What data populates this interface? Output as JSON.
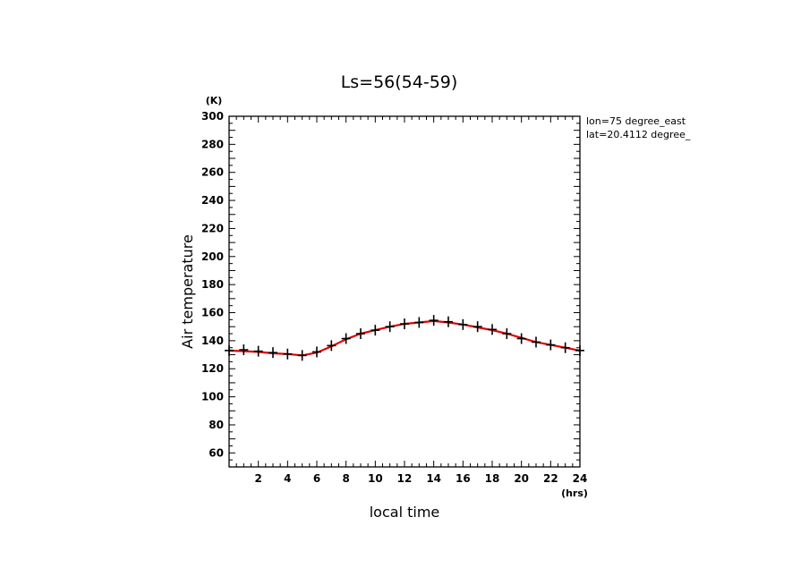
{
  "chart_data": {
    "type": "line",
    "title": "Ls=56(54-59)",
    "xlabel": "local time",
    "ylabel": "Air temperature",
    "x_unit": "(hrs)",
    "y_unit": "(K)",
    "xlim": [
      0,
      24
    ],
    "ylim": [
      50,
      300
    ],
    "x_ticks": [
      2,
      4,
      6,
      8,
      10,
      12,
      14,
      16,
      18,
      20,
      22,
      24
    ],
    "y_ticks": [
      60,
      80,
      100,
      120,
      140,
      160,
      180,
      200,
      220,
      240,
      260,
      280,
      300
    ],
    "annotations": [
      "lon=75 degree_east",
      "lat=20.4112 degree_"
    ],
    "grid": false,
    "series": [
      {
        "style": "line",
        "color": "#e00000",
        "x": [
          0,
          1,
          2,
          3,
          4,
          5,
          6,
          7,
          8,
          9,
          10,
          11,
          12,
          13,
          14,
          15,
          16,
          17,
          18,
          19,
          20,
          21,
          22,
          23,
          24
        ],
        "values": [
          133,
          132.5,
          132,
          131,
          130.5,
          129.5,
          131.5,
          136,
          141,
          145,
          147.5,
          150,
          152,
          153,
          154,
          153,
          151.5,
          149.5,
          147.5,
          145,
          142,
          139,
          137,
          135,
          133
        ]
      },
      {
        "style": "markers",
        "marker": "plus",
        "color": "#000000",
        "x": [
          0,
          1,
          2,
          3,
          4,
          5,
          6,
          7,
          8,
          9,
          10,
          11,
          12,
          13,
          14,
          15,
          16,
          17,
          18,
          19,
          20,
          21,
          22,
          23,
          24
        ],
        "values": [
          133,
          133.5,
          132.5,
          131.5,
          130.5,
          129.5,
          132,
          136.5,
          141.5,
          145,
          147.5,
          150,
          152,
          153,
          154.5,
          153.5,
          151.5,
          150,
          148,
          145,
          141.5,
          139,
          137,
          135,
          133
        ]
      }
    ]
  }
}
